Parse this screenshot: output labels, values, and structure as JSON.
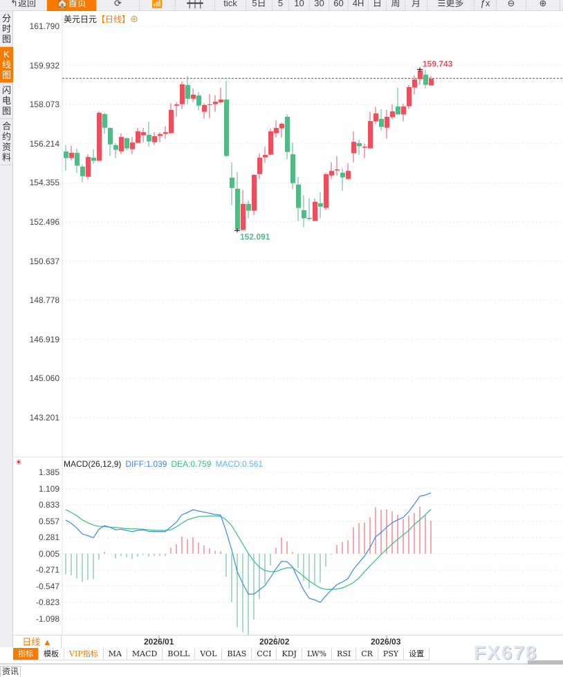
{
  "toolbar": {
    "items": [
      {
        "label": "↰返回",
        "name": "back-button",
        "w": 68
      },
      {
        "label": "🏠首页",
        "name": "home-button",
        "w": 72,
        "active": true
      },
      {
        "label": "⟳",
        "name": "refresh-button",
        "w": 62
      },
      {
        "label": "📶",
        "name": "chart-type-icon",
        "w": 52
      },
      {
        "label": "┿┿┿",
        "name": "candle-icon",
        "w": 57
      },
      {
        "label": "tick",
        "name": "period-tick",
        "w": 45
      },
      {
        "label": "5日",
        "name": "period-5day",
        "w": 38
      },
      {
        "label": "5",
        "name": "period-5min",
        "w": 24
      },
      {
        "label": "10",
        "name": "period-10min",
        "w": 30
      },
      {
        "label": "30",
        "name": "period-30min",
        "w": 28
      },
      {
        "label": "60",
        "name": "period-60min",
        "w": 28
      },
      {
        "label": "4H",
        "name": "period-4h",
        "w": 29
      },
      {
        "label": "日",
        "name": "period-day",
        "w": 26
      },
      {
        "label": "周",
        "name": "period-week",
        "w": 27
      },
      {
        "label": "月",
        "name": "period-month",
        "w": 32
      },
      {
        "label": "☰更多",
        "name": "more-button",
        "w": 68
      },
      {
        "label": "ƒx",
        "name": "formula-button",
        "w": 32
      },
      {
        "label": "⊖",
        "name": "zoom-out-button",
        "w": 43
      },
      {
        "label": "⊕",
        "name": "zoom-in-button",
        "w": 49
      }
    ]
  },
  "sidetabs": [
    {
      "label": "分时图"
    },
    {
      "label": "K线图",
      "active": true
    },
    {
      "label": "闪电图"
    },
    {
      "label": "合约资料"
    }
  ],
  "title": {
    "symbol": "美元日元",
    "timeframe": "【日线】",
    "add_icon": "⊕"
  },
  "colors": {
    "up": "#ec4f5e",
    "down": "#52b987",
    "diff": "#3a86f0",
    "dea": "#36c07a",
    "macd": "#5bb8e8",
    "accent": "#f77b00"
  },
  "chart_data": [
    {
      "type": "candlestick",
      "ylim": [
        142.5,
        162.3
      ],
      "yticks": [
        "161.790",
        "159.932",
        "158.073",
        "156.214",
        "154.355",
        "152.496",
        "150.637",
        "148.778",
        "146.919",
        "145.060",
        "143.201"
      ],
      "xticks": [
        "2026/01",
        "2026/02",
        "2026/03"
      ],
      "current_price_line": 159.32,
      "high_label": "159.743",
      "low_label": "152.091",
      "ohlc": [
        [
          155.84,
          156.14,
          154.94,
          155.53
        ],
        [
          155.53,
          156.11,
          155.43,
          155.78
        ],
        [
          155.78,
          155.98,
          154.83,
          155.17
        ],
        [
          155.12,
          155.22,
          154.38,
          154.67
        ],
        [
          154.64,
          155.71,
          154.51,
          155.58
        ],
        [
          155.55,
          155.94,
          155.26,
          155.4
        ],
        [
          155.4,
          157.75,
          155.4,
          157.68
        ],
        [
          157.62,
          157.68,
          156.68,
          156.97
        ],
        [
          156.96,
          156.99,
          155.63,
          156.18
        ],
        [
          156.14,
          156.24,
          155.53,
          155.92
        ],
        [
          155.85,
          156.7,
          155.72,
          156.53
        ],
        [
          156.47,
          156.5,
          155.89,
          155.99
        ],
        [
          155.95,
          156.53,
          155.72,
          156.27
        ],
        [
          156.25,
          156.96,
          156.25,
          156.8
        ],
        [
          156.61,
          156.96,
          156.28,
          156.76
        ],
        [
          156.63,
          157.26,
          156.08,
          156.32
        ],
        [
          156.28,
          156.76,
          156.15,
          156.57
        ],
        [
          156.58,
          156.76,
          156.28,
          156.67
        ],
        [
          156.68,
          157.03,
          156.45,
          156.76
        ],
        [
          156.71,
          158.14,
          156.71,
          157.82
        ],
        [
          158.02,
          158.18,
          157.5,
          158.08
        ],
        [
          158.09,
          159.16,
          157.86,
          159.03
        ],
        [
          159.0,
          159.42,
          158.09,
          158.35
        ],
        [
          158.35,
          158.83,
          158.19,
          158.54
        ],
        [
          158.5,
          158.67,
          157.79,
          158.02
        ],
        [
          157.73,
          158.14,
          157.4,
          158.05
        ],
        [
          158.06,
          158.57,
          157.43,
          158.08
        ],
        [
          158.09,
          158.5,
          157.73,
          158.21
        ],
        [
          158.18,
          158.87,
          158.14,
          158.31
        ],
        [
          158.31,
          159.2,
          155.59,
          155.63
        ],
        [
          154.6,
          155.32,
          153.29,
          154.11
        ],
        [
          154.07,
          154.86,
          152.091,
          152.14
        ],
        [
          152.11,
          154.0,
          152.11,
          153.35
        ],
        [
          153.35,
          153.51,
          152.67,
          153.03
        ],
        [
          153.03,
          154.76,
          152.83,
          154.73
        ],
        [
          154.77,
          155.75,
          154.54,
          155.55
        ],
        [
          155.56,
          156.07,
          155.3,
          155.68
        ],
        [
          155.69,
          156.93,
          155.66,
          156.8
        ],
        [
          156.71,
          157.32,
          156.51,
          156.96
        ],
        [
          156.94,
          157.22,
          156.51,
          157.16
        ],
        [
          157.49,
          157.62,
          155.47,
          155.82
        ],
        [
          155.71,
          156.27,
          154.05,
          154.34
        ],
        [
          154.27,
          154.63,
          152.54,
          153.16
        ],
        [
          153.05,
          153.75,
          152.24,
          152.67
        ],
        [
          152.69,
          153.64,
          152.56,
          152.64
        ],
        [
          152.54,
          153.61,
          152.54,
          153.45
        ],
        [
          153.38,
          153.91,
          152.67,
          153.22
        ],
        [
          153.16,
          154.83,
          153.06,
          154.76
        ],
        [
          154.7,
          155.32,
          154.54,
          154.92
        ],
        [
          154.94,
          155.61,
          154.7,
          154.99
        ],
        [
          154.83,
          155.02,
          153.98,
          154.61
        ],
        [
          154.54,
          155.29,
          154.51,
          154.92
        ],
        [
          155.76,
          156.8,
          155.33,
          156.3
        ],
        [
          156.24,
          156.4,
          155.69,
          156.09
        ],
        [
          156.02,
          156.21,
          155.53,
          156.07
        ],
        [
          155.99,
          157.72,
          155.99,
          157.29
        ],
        [
          157.27,
          157.95,
          157.14,
          157.65
        ],
        [
          157.39,
          157.85,
          156.84,
          157.01
        ],
        [
          156.97,
          157.82,
          156.45,
          157.49
        ],
        [
          157.47,
          158.08,
          157.37,
          157.75
        ],
        [
          157.98,
          158.87,
          157.6,
          157.6
        ],
        [
          157.6,
          158.11,
          157.27,
          157.98
        ],
        [
          157.99,
          159.0,
          157.86,
          158.9
        ],
        [
          158.88,
          159.46,
          158.55,
          159.26
        ],
        [
          159.28,
          159.743,
          159.01,
          159.69
        ],
        [
          159.49,
          159.72,
          158.84,
          159.01
        ],
        [
          158.98,
          159.43,
          158.98,
          159.29
        ]
      ]
    },
    {
      "type": "macd",
      "title": "MACD(26,12,9)",
      "diff_label": "DIFF:1.039",
      "dea_label": "DEA:0.759",
      "macd_label": "MACD:0.561",
      "ylim": [
        -1.35,
        1.55
      ],
      "yticks": [
        "1.385",
        "1.109",
        "0.833",
        "0.557",
        "0.281",
        "0.005",
        "-0.271",
        "-0.547",
        "-0.823",
        "-1.098"
      ],
      "diff": [
        0.576,
        0.52,
        0.44,
        0.34,
        0.31,
        0.275,
        0.42,
        0.48,
        0.455,
        0.41,
        0.42,
        0.4,
        0.38,
        0.4,
        0.41,
        0.385,
        0.38,
        0.38,
        0.38,
        0.46,
        0.54,
        0.665,
        0.705,
        0.75,
        0.73,
        0.71,
        0.69,
        0.67,
        0.66,
        0.385,
        0.07,
        -0.3,
        -0.5,
        -0.68,
        -0.68,
        -0.61,
        -0.535,
        -0.4,
        -0.25,
        -0.125,
        -0.13,
        -0.22,
        -0.42,
        -0.61,
        -0.75,
        -0.78,
        -0.82,
        -0.71,
        -0.61,
        -0.52,
        -0.475,
        -0.42,
        -0.26,
        -0.145,
        -0.035,
        0.11,
        0.29,
        0.365,
        0.455,
        0.53,
        0.58,
        0.62,
        0.72,
        0.845,
        0.98,
        1.0,
        1.039
      ],
      "dea": [
        0.752,
        0.705,
        0.65,
        0.58,
        0.53,
        0.49,
        0.47,
        0.465,
        0.455,
        0.45,
        0.44,
        0.43,
        0.425,
        0.425,
        0.42,
        0.41,
        0.4,
        0.4,
        0.4,
        0.41,
        0.46,
        0.52,
        0.58,
        0.61,
        0.635,
        0.64,
        0.645,
        0.645,
        0.64,
        0.58,
        0.48,
        0.325,
        0.17,
        0.01,
        -0.12,
        -0.225,
        -0.28,
        -0.3,
        -0.3,
        -0.26,
        -0.235,
        -0.235,
        -0.3,
        -0.38,
        -0.455,
        -0.52,
        -0.575,
        -0.6,
        -0.6,
        -0.595,
        -0.575,
        -0.535,
        -0.485,
        -0.405,
        -0.3,
        -0.2,
        -0.105,
        -0.007,
        0.08,
        0.17,
        0.25,
        0.325,
        0.4,
        0.5,
        0.58,
        0.665,
        0.759
      ]
    }
  ],
  "xaxis": {
    "period_label": "日线 ▲"
  },
  "indicator_tabs": [
    {
      "label": "指标",
      "active": true
    },
    {
      "label": "模板"
    },
    {
      "label": "VIP指标",
      "vip": true
    },
    {
      "label": "MA"
    },
    {
      "label": "MACD"
    },
    {
      "label": "BOLL"
    },
    {
      "label": "VOL"
    },
    {
      "label": "BIAS"
    },
    {
      "label": "CCI"
    },
    {
      "label": "KDJ"
    },
    {
      "label": "LW%"
    },
    {
      "label": "RSI"
    },
    {
      "label": "CR"
    },
    {
      "label": "PSY"
    },
    {
      "label": "设置"
    }
  ],
  "news_tab": "资讯",
  "watermark": "FX678"
}
